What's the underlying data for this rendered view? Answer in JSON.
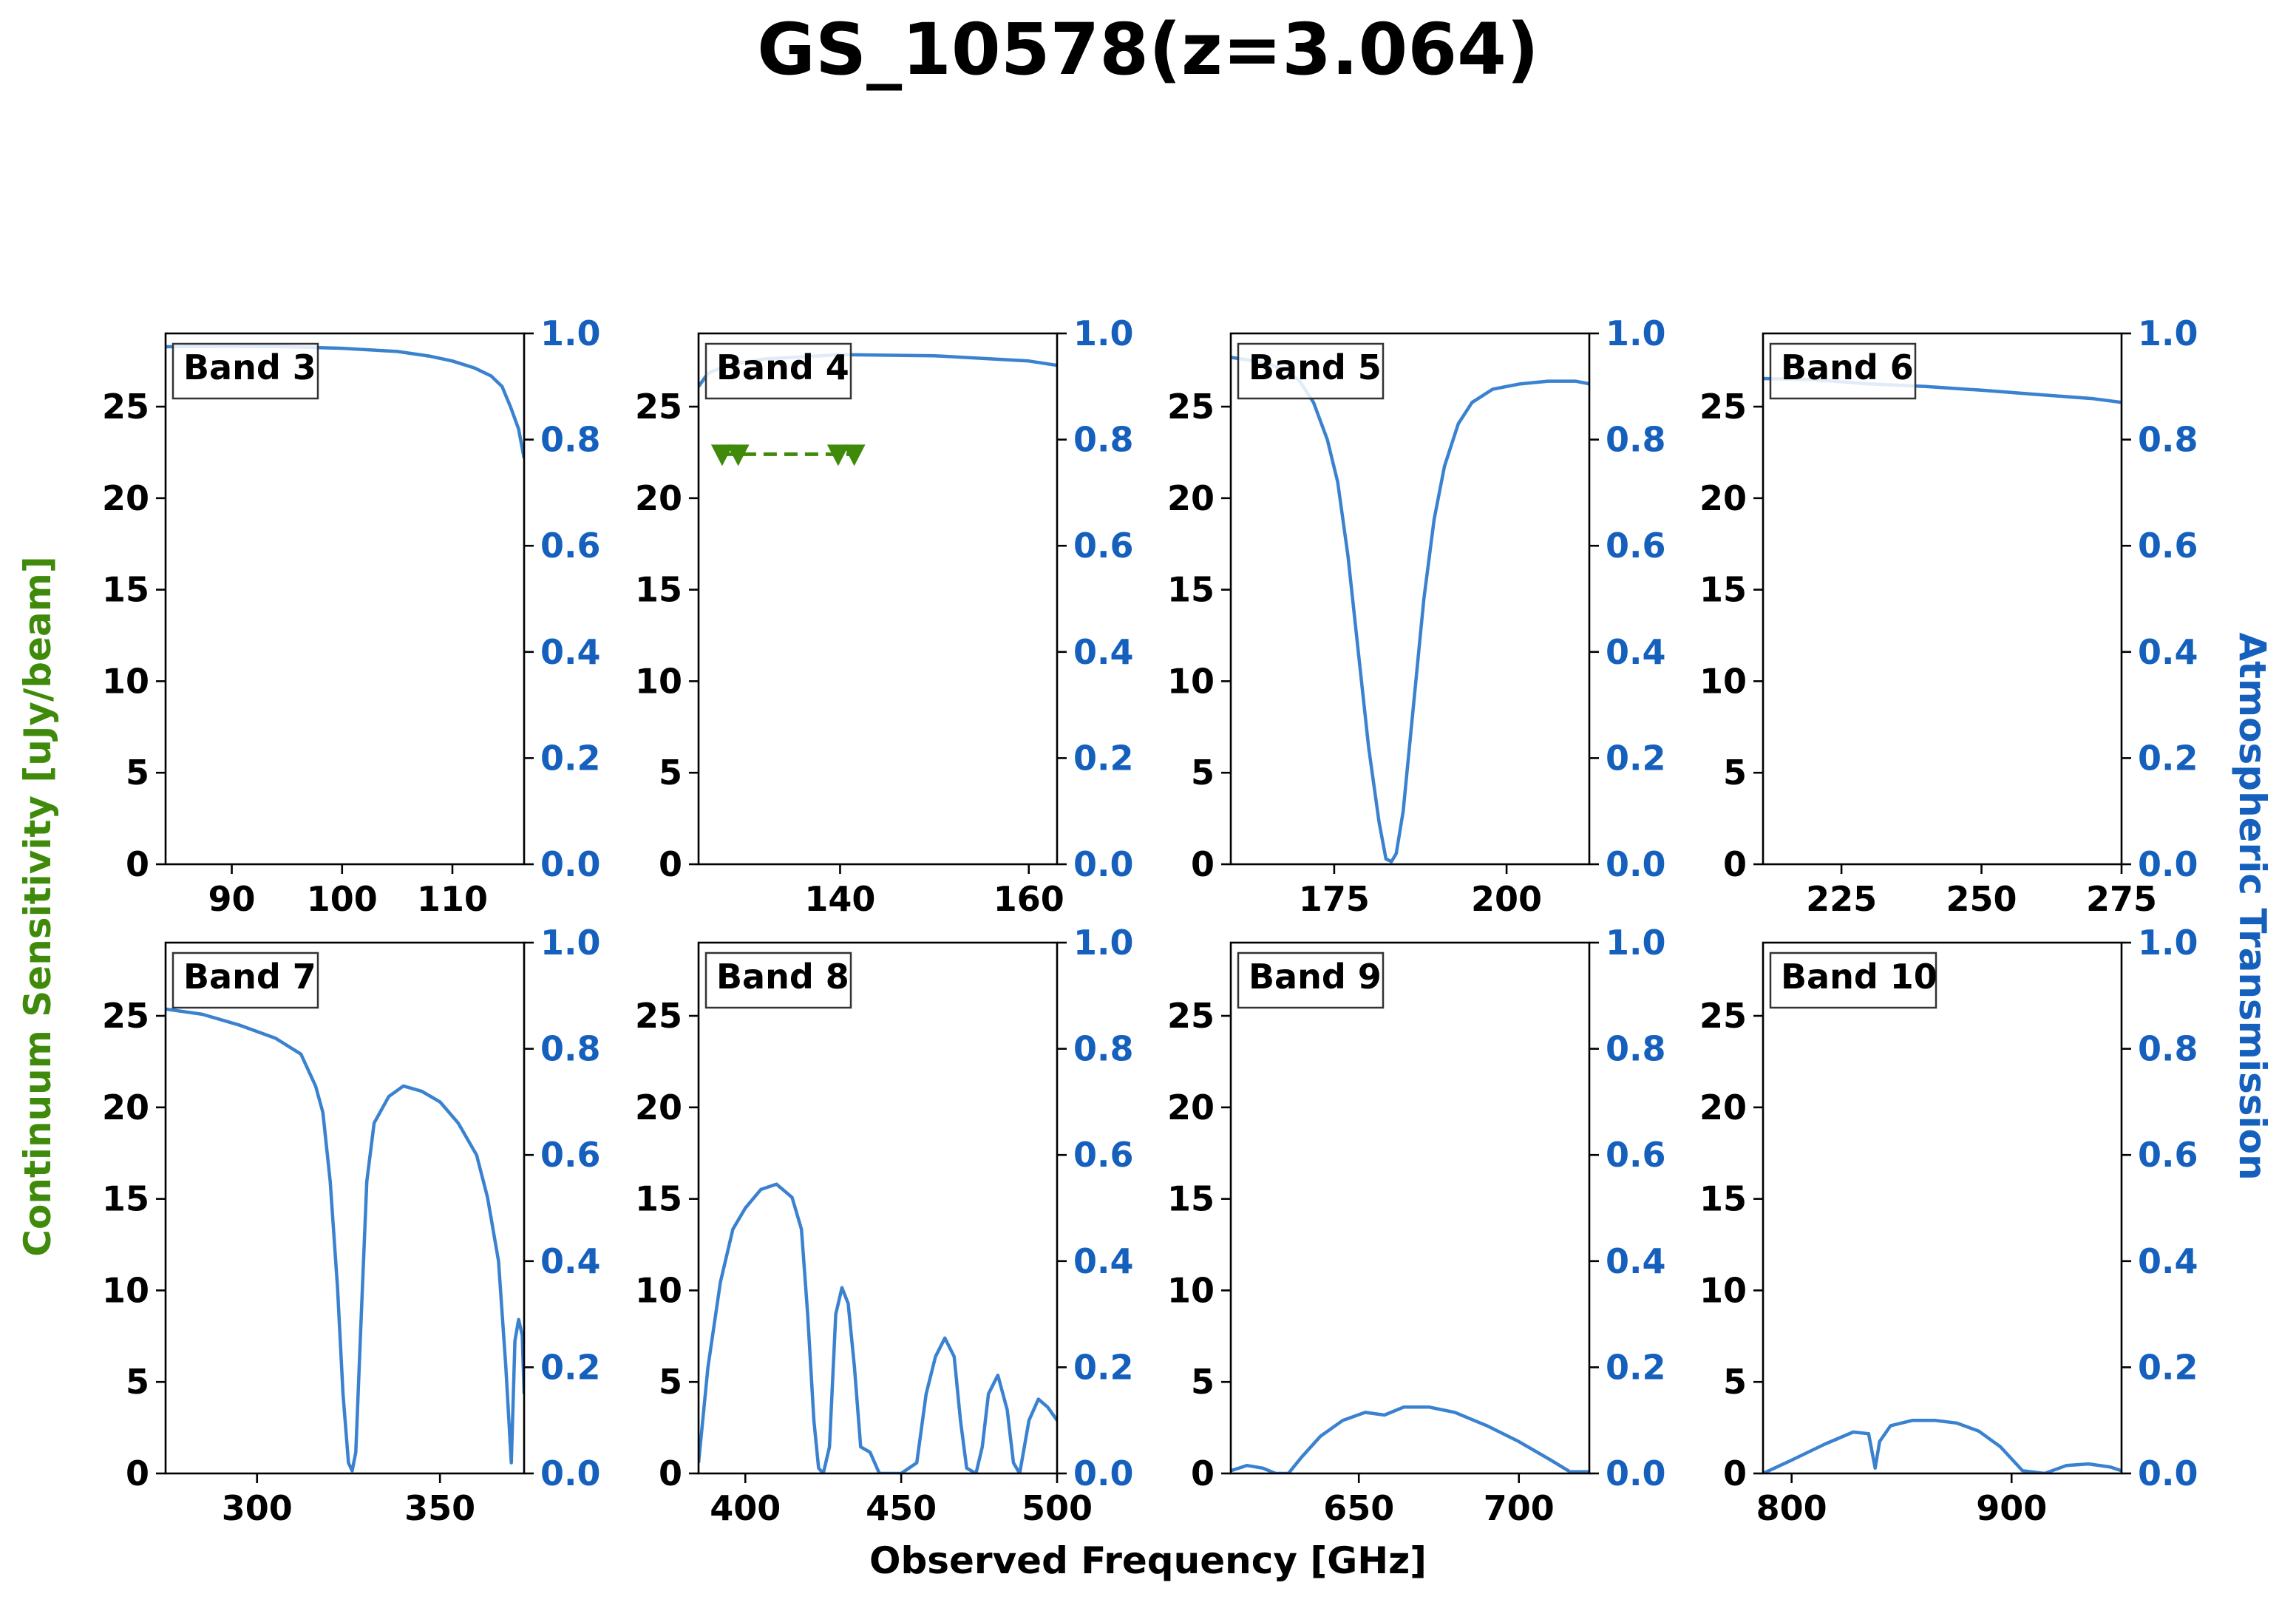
{
  "figure": {
    "title": "GS_10578(z=3.064)",
    "xlabel": "Observed Frequency [GHz]",
    "ylabel_left": "Continuum Sensitivity [uJy/beam]",
    "ylabel_right": "Atmospheric Transmission",
    "left_axis_color": "#3f8a0a",
    "right_axis_color": "#1560bd",
    "line_color": "#3a82d0",
    "marker_color": "#3f8a0a"
  },
  "chart_data": [
    {
      "type": "line",
      "band": "Band 3",
      "xlim": [
        84,
        116.5
      ],
      "ylim": [
        0,
        29
      ],
      "y2lim": [
        0,
        1
      ],
      "xticks": [
        90,
        100,
        110
      ],
      "yticks": [
        0,
        5,
        10,
        15,
        20,
        25
      ],
      "y2ticks": [
        0.0,
        0.2,
        0.4,
        0.6,
        0.8,
        1.0
      ],
      "transmission": [
        [
          84,
          0.975
        ],
        [
          90,
          0.976
        ],
        [
          95,
          0.975
        ],
        [
          100,
          0.972
        ],
        [
          105,
          0.966
        ],
        [
          108,
          0.957
        ],
        [
          110,
          0.948
        ],
        [
          112,
          0.935
        ],
        [
          113.5,
          0.92
        ],
        [
          114.5,
          0.9
        ],
        [
          115.3,
          0.86
        ],
        [
          116,
          0.82
        ],
        [
          116.5,
          0.765
        ]
      ],
      "sensitivity": []
    },
    {
      "type": "line",
      "band": "Band 4",
      "xlim": [
        125,
        163
      ],
      "ylim": [
        0,
        29
      ],
      "y2lim": [
        0,
        1
      ],
      "xticks": [
        140,
        160
      ],
      "yticks": [
        0,
        5,
        10,
        15,
        20,
        25
      ],
      "y2ticks": [
        0.0,
        0.2,
        0.4,
        0.6,
        0.8,
        1.0
      ],
      "transmission": [
        [
          125,
          0.9
        ],
        [
          126,
          0.925
        ],
        [
          128,
          0.94
        ],
        [
          132,
          0.952
        ],
        [
          140,
          0.96
        ],
        [
          150,
          0.958
        ],
        [
          160,
          0.948
        ],
        [
          163,
          0.94
        ]
      ],
      "sensitivity": [
        [
          127.5,
          22.4
        ],
        [
          129.2,
          22.4
        ],
        [
          139.8,
          22.4
        ],
        [
          141.5,
          22.4
        ]
      ]
    },
    {
      "type": "line",
      "band": "Band 5",
      "xlim": [
        160,
        212
      ],
      "ylim": [
        0,
        29
      ],
      "y2lim": [
        0,
        1
      ],
      "xticks": [
        175,
        200
      ],
      "yticks": [
        0,
        5,
        10,
        15,
        20,
        25
      ],
      "y2ticks": [
        0.0,
        0.2,
        0.4,
        0.6,
        0.8,
        1.0
      ],
      "transmission": [
        [
          160,
          0.955
        ],
        [
          165,
          0.945
        ],
        [
          168,
          0.93
        ],
        [
          170,
          0.91
        ],
        [
          172,
          0.87
        ],
        [
          174,
          0.8
        ],
        [
          175.5,
          0.72
        ],
        [
          177,
          0.58
        ],
        [
          178.5,
          0.4
        ],
        [
          180,
          0.22
        ],
        [
          181.5,
          0.08
        ],
        [
          182.5,
          0.01
        ],
        [
          183.3,
          0.005
        ],
        [
          184,
          0.02
        ],
        [
          185,
          0.1
        ],
        [
          186.5,
          0.3
        ],
        [
          188,
          0.5
        ],
        [
          189.5,
          0.65
        ],
        [
          191,
          0.75
        ],
        [
          193,
          0.83
        ],
        [
          195,
          0.87
        ],
        [
          198,
          0.895
        ],
        [
          202,
          0.905
        ],
        [
          206,
          0.91
        ],
        [
          210,
          0.91
        ],
        [
          212,
          0.905
        ]
      ],
      "sensitivity": []
    },
    {
      "type": "line",
      "band": "Band 6",
      "xlim": [
        211,
        275
      ],
      "ylim": [
        0,
        29
      ],
      "y2lim": [
        0,
        1
      ],
      "xticks": [
        225,
        250,
        275
      ],
      "yticks": [
        0,
        5,
        10,
        15,
        20,
        25
      ],
      "y2ticks": [
        0.0,
        0.2,
        0.4,
        0.6,
        0.8,
        1.0
      ],
      "transmission": [
        [
          211,
          0.915
        ],
        [
          220,
          0.913
        ],
        [
          230,
          0.905
        ],
        [
          240,
          0.9
        ],
        [
          250,
          0.893
        ],
        [
          260,
          0.885
        ],
        [
          270,
          0.877
        ],
        [
          275,
          0.87
        ]
      ],
      "sensitivity": []
    },
    {
      "type": "line",
      "band": "Band 7",
      "xlim": [
        275,
        373
      ],
      "ylim": [
        0,
        29
      ],
      "y2lim": [
        0,
        1
      ],
      "xticks": [
        300,
        350
      ],
      "yticks": [
        0,
        5,
        10,
        15,
        20,
        25
      ],
      "y2ticks": [
        0.0,
        0.2,
        0.4,
        0.6,
        0.8,
        1.0
      ],
      "transmission": [
        [
          275,
          0.875
        ],
        [
          285,
          0.865
        ],
        [
          295,
          0.845
        ],
        [
          305,
          0.82
        ],
        [
          312,
          0.79
        ],
        [
          316,
          0.73
        ],
        [
          318,
          0.68
        ],
        [
          320,
          0.55
        ],
        [
          322,
          0.35
        ],
        [
          323.5,
          0.15
        ],
        [
          325,
          0.02
        ],
        [
          326,
          0.005
        ],
        [
          327,
          0.04
        ],
        [
          328.5,
          0.3
        ],
        [
          330,
          0.55
        ],
        [
          332,
          0.66
        ],
        [
          336,
          0.71
        ],
        [
          340,
          0.73
        ],
        [
          345,
          0.72
        ],
        [
          350,
          0.7
        ],
        [
          355,
          0.66
        ],
        [
          360,
          0.6
        ],
        [
          363,
          0.52
        ],
        [
          366,
          0.4
        ],
        [
          368,
          0.2
        ],
        [
          369.5,
          0.02
        ],
        [
          370.5,
          0.25
        ],
        [
          371.5,
          0.29
        ],
        [
          372.5,
          0.26
        ],
        [
          373,
          0.15
        ]
      ],
      "sensitivity": []
    },
    {
      "type": "line",
      "band": "Band 8",
      "xlim": [
        385,
        500
      ],
      "ylim": [
        0,
        29
      ],
      "y2lim": [
        0,
        1
      ],
      "xticks": [
        400,
        450,
        500
      ],
      "yticks": [
        0,
        5,
        10,
        15,
        20,
        25
      ],
      "y2ticks": [
        0.0,
        0.2,
        0.4,
        0.6,
        0.8,
        1.0
      ],
      "transmission": [
        [
          385,
          0.02
        ],
        [
          388,
          0.2
        ],
        [
          392,
          0.36
        ],
        [
          396,
          0.46
        ],
        [
          400,
          0.5
        ],
        [
          405,
          0.535
        ],
        [
          410,
          0.545
        ],
        [
          415,
          0.52
        ],
        [
          418,
          0.46
        ],
        [
          420,
          0.3
        ],
        [
          422,
          0.1
        ],
        [
          423.5,
          0.01
        ],
        [
          425,
          0.0
        ],
        [
          427,
          0.05
        ],
        [
          429,
          0.3
        ],
        [
          431,
          0.35
        ],
        [
          433,
          0.32
        ],
        [
          435,
          0.2
        ],
        [
          437,
          0.05
        ],
        [
          440,
          0.04
        ],
        [
          443,
          0.0
        ],
        [
          450,
          0.0
        ],
        [
          455,
          0.02
        ],
        [
          458,
          0.15
        ],
        [
          461,
          0.22
        ],
        [
          464,
          0.255
        ],
        [
          467,
          0.22
        ],
        [
          469,
          0.1
        ],
        [
          471,
          0.01
        ],
        [
          474,
          0.0
        ],
        [
          476,
          0.05
        ],
        [
          478,
          0.15
        ],
        [
          481,
          0.185
        ],
        [
          484,
          0.12
        ],
        [
          486,
          0.02
        ],
        [
          488,
          0.0
        ],
        [
          491,
          0.1
        ],
        [
          494,
          0.14
        ],
        [
          497,
          0.125
        ],
        [
          500,
          0.1
        ]
      ],
      "sensitivity": []
    },
    {
      "type": "line",
      "band": "Band 9",
      "xlim": [
        610,
        722
      ],
      "ylim": [
        0,
        29
      ],
      "y2lim": [
        0,
        1
      ],
      "xticks": [
        650,
        700
      ],
      "yticks": [
        0,
        5,
        10,
        15,
        20,
        25
      ],
      "y2ticks": [
        0.0,
        0.2,
        0.4,
        0.6,
        0.8,
        1.0
      ],
      "transmission": [
        [
          610,
          0.005
        ],
        [
          615,
          0.015
        ],
        [
          620,
          0.01
        ],
        [
          624,
          0.0
        ],
        [
          628,
          0.0
        ],
        [
          632,
          0.03
        ],
        [
          638,
          0.07
        ],
        [
          645,
          0.1
        ],
        [
          652,
          0.115
        ],
        [
          658,
          0.11
        ],
        [
          664,
          0.125
        ],
        [
          672,
          0.125
        ],
        [
          680,
          0.115
        ],
        [
          690,
          0.09
        ],
        [
          700,
          0.06
        ],
        [
          710,
          0.025
        ],
        [
          716,
          0.003
        ],
        [
          722,
          0.003
        ]
      ],
      "sensitivity": []
    },
    {
      "type": "line",
      "band": "Band 10",
      "xlim": [
        787,
        950
      ],
      "ylim": [
        0,
        29
      ],
      "y2lim": [
        0,
        1
      ],
      "xticks": [
        800,
        900
      ],
      "yticks": [
        0,
        5,
        10,
        15,
        20,
        25
      ],
      "y2ticks": [
        0.0,
        0.2,
        0.4,
        0.6,
        0.8,
        1.0
      ],
      "transmission": [
        [
          787,
          0.0
        ],
        [
          800,
          0.025
        ],
        [
          815,
          0.055
        ],
        [
          828,
          0.078
        ],
        [
          835,
          0.075
        ],
        [
          838,
          0.01
        ],
        [
          840,
          0.06
        ],
        [
          845,
          0.09
        ],
        [
          855,
          0.1
        ],
        [
          865,
          0.1
        ],
        [
          875,
          0.095
        ],
        [
          885,
          0.08
        ],
        [
          895,
          0.05
        ],
        [
          905,
          0.005
        ],
        [
          915,
          0.0
        ],
        [
          925,
          0.015
        ],
        [
          935,
          0.018
        ],
        [
          945,
          0.012
        ],
        [
          950,
          0.005
        ]
      ],
      "sensitivity": []
    }
  ]
}
